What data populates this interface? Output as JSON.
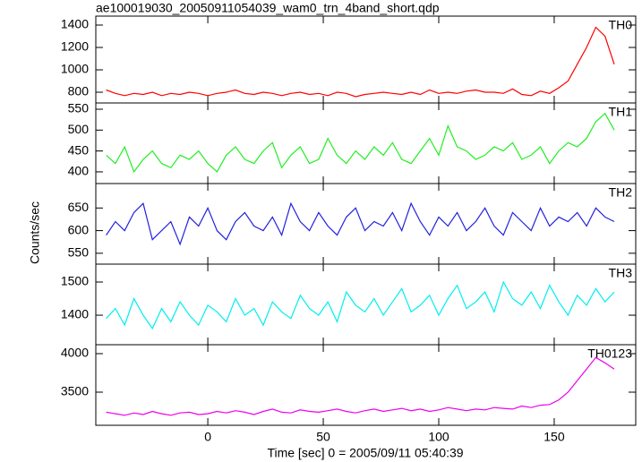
{
  "chart_data": [
    {
      "type": "line",
      "title": "ae100019030_20050911054039_wam0_trn_4band_short.qdp",
      "label": "TH0",
      "color": "#ff0000",
      "xlim": [
        -48.5,
        185.3
      ],
      "ylim": [
        704,
        1480
      ],
      "yticks": [
        800,
        1000,
        1200,
        1400
      ],
      "x": [
        -44,
        -40,
        -36,
        -32,
        -28,
        -24,
        -20,
        -16,
        -12,
        -8,
        -4,
        0,
        4,
        8,
        12,
        16,
        20,
        24,
        28,
        32,
        36,
        40,
        44,
        48,
        52,
        56,
        60,
        64,
        68,
        72,
        76,
        80,
        84,
        88,
        92,
        96,
        100,
        104,
        108,
        112,
        116,
        120,
        124,
        128,
        132,
        136,
        140,
        144,
        148,
        152,
        156,
        160,
        164,
        168,
        172,
        176
      ],
      "values": [
        820,
        790,
        770,
        790,
        780,
        800,
        770,
        790,
        780,
        800,
        790,
        770,
        790,
        800,
        820,
        790,
        780,
        800,
        790,
        770,
        790,
        800,
        780,
        790,
        770,
        800,
        790,
        760,
        780,
        790,
        800,
        790,
        780,
        800,
        780,
        820,
        790,
        800,
        790,
        810,
        820,
        800,
        800,
        790,
        830,
        780,
        770,
        810,
        790,
        840,
        900,
        1050,
        1200,
        1380,
        1300,
        1050
      ]
    },
    {
      "type": "line",
      "label": "TH1",
      "color": "#22ee22",
      "xlim": [
        -48.5,
        185.3
      ],
      "ylim": [
        372,
        565
      ],
      "yticks": [
        400,
        450,
        500,
        550
      ],
      "x": [
        -44,
        -40,
        -36,
        -32,
        -28,
        -24,
        -20,
        -16,
        -12,
        -8,
        -4,
        0,
        4,
        8,
        12,
        16,
        20,
        24,
        28,
        32,
        36,
        40,
        44,
        48,
        52,
        56,
        60,
        64,
        68,
        72,
        76,
        80,
        84,
        88,
        92,
        96,
        100,
        104,
        108,
        112,
        116,
        120,
        124,
        128,
        132,
        136,
        140,
        144,
        148,
        152,
        156,
        160,
        164,
        168,
        172,
        176
      ],
      "values": [
        440,
        420,
        460,
        400,
        430,
        450,
        420,
        410,
        440,
        430,
        450,
        420,
        400,
        440,
        460,
        430,
        420,
        450,
        470,
        410,
        440,
        460,
        420,
        430,
        480,
        440,
        420,
        450,
        430,
        460,
        440,
        470,
        430,
        420,
        450,
        480,
        440,
        510,
        460,
        450,
        430,
        440,
        460,
        450,
        470,
        430,
        440,
        460,
        420,
        450,
        470,
        460,
        480,
        520,
        540,
        500
      ]
    },
    {
      "type": "line",
      "label": "TH2",
      "color": "#2222dd",
      "y_label": "Counts/sec",
      "xlim": [
        -48.5,
        185.3
      ],
      "ylim": [
        526,
        704
      ],
      "yticks": [
        550,
        600,
        650
      ],
      "x": [
        -44,
        -40,
        -36,
        -32,
        -28,
        -24,
        -20,
        -16,
        -12,
        -8,
        -4,
        0,
        4,
        8,
        12,
        16,
        20,
        24,
        28,
        32,
        36,
        40,
        44,
        48,
        52,
        56,
        60,
        64,
        68,
        72,
        76,
        80,
        84,
        88,
        92,
        96,
        100,
        104,
        108,
        112,
        116,
        120,
        124,
        128,
        132,
        136,
        140,
        144,
        148,
        152,
        156,
        160,
        164,
        168,
        172,
        176
      ],
      "values": [
        590,
        620,
        600,
        640,
        660,
        580,
        600,
        620,
        570,
        630,
        610,
        650,
        600,
        580,
        620,
        640,
        610,
        600,
        630,
        590,
        660,
        620,
        600,
        640,
        610,
        590,
        630,
        650,
        600,
        620,
        610,
        640,
        600,
        660,
        620,
        590,
        630,
        610,
        640,
        600,
        620,
        650,
        610,
        590,
        640,
        620,
        600,
        650,
        610,
        630,
        620,
        640,
        610,
        650,
        630,
        620
      ]
    },
    {
      "type": "line",
      "label": "TH3",
      "color": "#00eeee",
      "xlim": [
        -48.5,
        185.3
      ],
      "ylim": [
        1311,
        1554
      ],
      "yticks": [
        1400,
        1500
      ],
      "x": [
        -44,
        -40,
        -36,
        -32,
        -28,
        -24,
        -20,
        -16,
        -12,
        -8,
        -4,
        0,
        4,
        8,
        12,
        16,
        20,
        24,
        28,
        32,
        36,
        40,
        44,
        48,
        52,
        56,
        60,
        64,
        68,
        72,
        76,
        80,
        84,
        88,
        92,
        96,
        100,
        104,
        108,
        112,
        116,
        120,
        124,
        128,
        132,
        136,
        140,
        144,
        148,
        152,
        156,
        160,
        164,
        168,
        172,
        176
      ],
      "values": [
        1390,
        1420,
        1370,
        1450,
        1400,
        1360,
        1420,
        1380,
        1440,
        1400,
        1370,
        1430,
        1410,
        1380,
        1450,
        1400,
        1420,
        1370,
        1440,
        1410,
        1390,
        1460,
        1420,
        1400,
        1440,
        1380,
        1470,
        1430,
        1410,
        1450,
        1400,
        1440,
        1480,
        1410,
        1430,
        1460,
        1400,
        1450,
        1490,
        1420,
        1440,
        1470,
        1410,
        1500,
        1450,
        1430,
        1470,
        1420,
        1490,
        1440,
        1400,
        1460,
        1430,
        1480,
        1440,
        1470
      ]
    },
    {
      "type": "line",
      "label": "TH0123",
      "color": "#ee00ee",
      "x_label": "Time [sec] 0 = 2005/09/11 05:40:39",
      "xlim": [
        -48.5,
        185.3
      ],
      "xticks": [
        0,
        50,
        100,
        150
      ],
      "ylim": [
        3070,
        4116
      ],
      "yticks": [
        3500,
        4000
      ],
      "x": [
        -44,
        -40,
        -36,
        -32,
        -28,
        -24,
        -20,
        -16,
        -12,
        -8,
        -4,
        0,
        4,
        8,
        12,
        16,
        20,
        24,
        28,
        32,
        36,
        40,
        44,
        48,
        52,
        56,
        60,
        64,
        68,
        72,
        76,
        80,
        84,
        88,
        92,
        96,
        100,
        104,
        108,
        112,
        116,
        120,
        124,
        128,
        132,
        136,
        140,
        144,
        148,
        152,
        156,
        160,
        164,
        168,
        172,
        176
      ],
      "values": [
        3240,
        3220,
        3200,
        3230,
        3210,
        3250,
        3220,
        3200,
        3230,
        3240,
        3210,
        3220,
        3250,
        3230,
        3260,
        3240,
        3210,
        3250,
        3280,
        3240,
        3230,
        3270,
        3250,
        3240,
        3260,
        3280,
        3250,
        3230,
        3260,
        3280,
        3250,
        3270,
        3290,
        3260,
        3280,
        3250,
        3270,
        3300,
        3280,
        3260,
        3280,
        3270,
        3300,
        3290,
        3280,
        3320,
        3300,
        3330,
        3340,
        3400,
        3500,
        3650,
        3800,
        3950,
        3880,
        3800
      ]
    }
  ]
}
